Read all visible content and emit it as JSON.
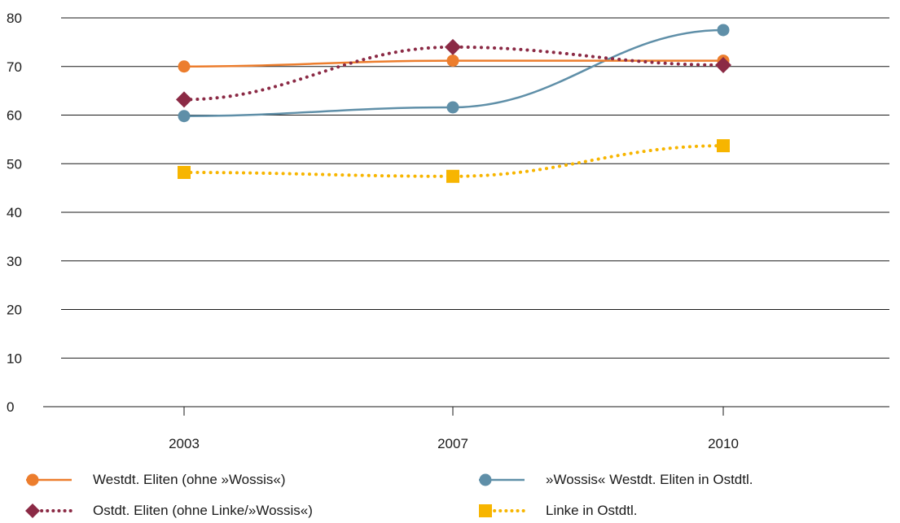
{
  "chart_data": {
    "type": "line",
    "categories": [
      "2003",
      "2007",
      "2010"
    ],
    "y_ticks": [
      "0",
      "10",
      "20",
      "30",
      "40",
      "50",
      "60",
      "70",
      "80"
    ],
    "ylim": [
      0,
      80
    ],
    "grid": true,
    "legend_position": "bottom",
    "series": [
      {
        "name": "Westdt. Eliten (ohne »Wossis«)",
        "values": [
          70,
          71.2,
          71.2
        ],
        "color": "#ec7d2d",
        "marker": "circle",
        "style": "solid"
      },
      {
        "name": "Ostdt. Eliten (ohne Linke/»Wossis«)",
        "values": [
          63.2,
          74,
          70.3
        ],
        "color": "#8b2a45",
        "marker": "diamond",
        "style": "dotted"
      },
      {
        "name": "»Wossis« Westdt. Eliten in Ostdtl.",
        "values": [
          59.8,
          61.6,
          77.5
        ],
        "color": "#5f8fa8",
        "marker": "circle",
        "style": "solid"
      },
      {
        "name": "Linke in Ostdtl.",
        "values": [
          48.2,
          47.4,
          53.7
        ],
        "color": "#f7b500",
        "marker": "square",
        "style": "dotted"
      }
    ]
  }
}
